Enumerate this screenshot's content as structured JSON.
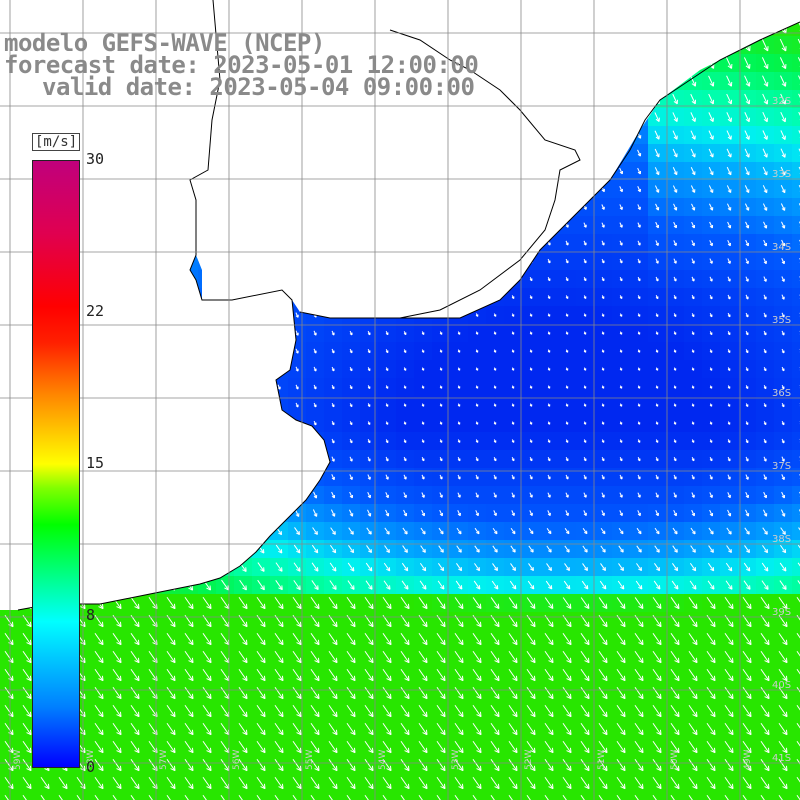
{
  "title": {
    "line1": "modelo GEFS-WAVE (NCEP)",
    "line2": "forecast date: 2023-05-01 12:00:00",
    "line3": "valid date: 2023-05-04 09:00:00"
  },
  "colorbar": {
    "unit": "[m/s]",
    "labels": [
      "30",
      "22",
      "15",
      "8",
      "0"
    ],
    "min": 0,
    "max": 30
  },
  "latitude_labels": [
    "32S",
    "33S",
    "34S",
    "35S",
    "36S",
    "37S",
    "38S",
    "39S",
    "40S",
    "41S"
  ],
  "longitude_labels": [
    "59W",
    "58W",
    "57W",
    "56W",
    "55W",
    "54W",
    "53W",
    "52W",
    "51W",
    "50W",
    "49W"
  ],
  "colors": {
    "land": "#ffffff",
    "coast": "#000000",
    "grid": "#888888",
    "arrow": "#ffffff"
  }
}
